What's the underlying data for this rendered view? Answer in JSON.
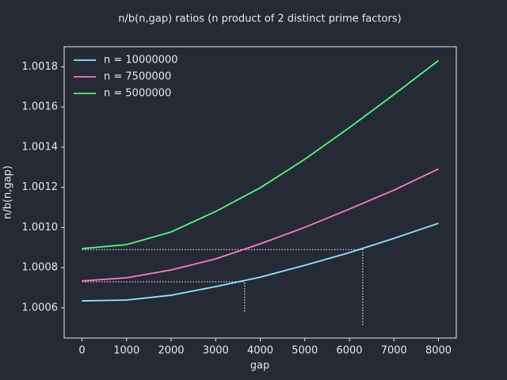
{
  "chart_data": {
    "type": "line",
    "title": "n/b(n,gap) ratios (n product of 2 distinct prime factors)",
    "x_label": "gap",
    "y_label": "n/b(n,gap)",
    "x": [
      0,
      1000,
      2000,
      3000,
      4000,
      5000,
      6000,
      7000,
      8000
    ],
    "series": [
      {
        "name": "n = 10000000",
        "color": "#8be9fd",
        "values": [
          1.000635,
          1.000639,
          1.000663,
          1.000706,
          1.000753,
          1.000812,
          1.000875,
          1.000946,
          1.001021
        ]
      },
      {
        "name": "n = 7500000",
        "color": "#ff79c6",
        "values": [
          1.000734,
          1.00075,
          1.000789,
          1.000844,
          1.000919,
          1.001001,
          1.001092,
          1.001186,
          1.001292
        ]
      },
      {
        "name": "n = 5000000",
        "color": "#50fa7b",
        "values": [
          1.000895,
          1.000915,
          1.000978,
          1.00108,
          1.001198,
          1.00134,
          1.001497,
          1.001662,
          1.001831
        ]
      }
    ],
    "guides": [
      {
        "x": 3650,
        "y": 1.00073,
        "y_end": 1.000576
      },
      {
        "x": 6300,
        "y": 1.00089,
        "y_end": 1.000513
      }
    ],
    "xlim": [
      -400,
      8400
    ],
    "ylim": [
      1.00045,
      1.0019
    ],
    "xticks": [
      0,
      1000,
      2000,
      3000,
      4000,
      5000,
      6000,
      7000,
      8000
    ],
    "yticks": [
      1.0006,
      1.0008,
      {
        "value": 1.001,
        "label": "1.0010"
      },
      1.0012,
      1.0014,
      1.0016,
      1.0018
    ],
    "legend": "upper left",
    "grid": false
  }
}
